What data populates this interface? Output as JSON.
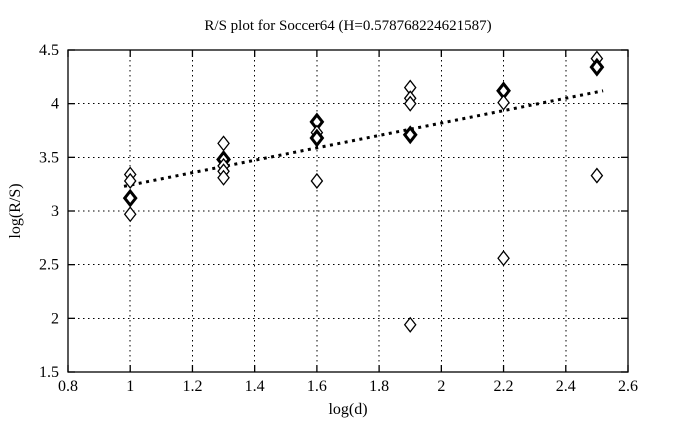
{
  "colors": {
    "background": "#ffffff",
    "foreground": "#000000"
  },
  "chart_data": {
    "type": "scatter",
    "title": "R/S plot for Soccer64 (H=0.578768224621587)",
    "xlabel": "log(d)",
    "ylabel": "log(R/S)",
    "xlim": [
      0.8,
      2.6
    ],
    "ylim": [
      1.5,
      4.5
    ],
    "grid": true,
    "legend_position": "none",
    "marker": "open-diamond",
    "xticks": [
      {
        "v": 0.8,
        "label": "0.8"
      },
      {
        "v": 1.0,
        "label": "1"
      },
      {
        "v": 1.2,
        "label": "1.2"
      },
      {
        "v": 1.4,
        "label": "1.4"
      },
      {
        "v": 1.6,
        "label": "1.6"
      },
      {
        "v": 1.8,
        "label": "1.8"
      },
      {
        "v": 2.0,
        "label": "2"
      },
      {
        "v": 2.2,
        "label": "2.2"
      },
      {
        "v": 2.4,
        "label": "2.4"
      },
      {
        "v": 2.6,
        "label": "2.6"
      }
    ],
    "yticks": [
      {
        "v": 1.5,
        "label": "1.5"
      },
      {
        "v": 2.0,
        "label": "2"
      },
      {
        "v": 2.5,
        "label": "2.5"
      },
      {
        "v": 3.0,
        "label": "3"
      },
      {
        "v": 3.5,
        "label": "3.5"
      },
      {
        "v": 4.0,
        "label": "4"
      },
      {
        "v": 4.5,
        "label": "4.5"
      }
    ],
    "points": [
      {
        "x": 1.0,
        "y": 3.34,
        "bold": false
      },
      {
        "x": 1.0,
        "y": 3.28,
        "bold": false
      },
      {
        "x": 1.0,
        "y": 3.12,
        "bold": true
      },
      {
        "x": 1.0,
        "y": 2.97,
        "bold": false
      },
      {
        "x": 1.3,
        "y": 3.63,
        "bold": false
      },
      {
        "x": 1.3,
        "y": 3.48,
        "bold": true
      },
      {
        "x": 1.3,
        "y": 3.42,
        "bold": false
      },
      {
        "x": 1.3,
        "y": 3.37,
        "bold": false
      },
      {
        "x": 1.3,
        "y": 3.31,
        "bold": false
      },
      {
        "x": 1.6,
        "y": 3.83,
        "bold": true
      },
      {
        "x": 1.6,
        "y": 3.73,
        "bold": false
      },
      {
        "x": 1.6,
        "y": 3.68,
        "bold": true
      },
      {
        "x": 1.6,
        "y": 3.28,
        "bold": false
      },
      {
        "x": 1.9,
        "y": 4.15,
        "bold": false
      },
      {
        "x": 1.9,
        "y": 4.05,
        "bold": false
      },
      {
        "x": 1.9,
        "y": 4.0,
        "bold": false
      },
      {
        "x": 1.9,
        "y": 3.71,
        "bold": true
      },
      {
        "x": 1.9,
        "y": 1.94,
        "bold": false
      },
      {
        "x": 2.2,
        "y": 4.12,
        "bold": true
      },
      {
        "x": 2.2,
        "y": 4.01,
        "bold": false
      },
      {
        "x": 2.2,
        "y": 2.56,
        "bold": false
      },
      {
        "x": 2.5,
        "y": 4.42,
        "bold": false
      },
      {
        "x": 2.5,
        "y": 4.34,
        "bold": true
      },
      {
        "x": 2.5,
        "y": 3.33,
        "bold": false
      }
    ],
    "trend_line": {
      "from": {
        "x": 0.98,
        "y": 3.23
      },
      "to": {
        "x": 2.52,
        "y": 4.12
      },
      "style": "bold-dotted"
    }
  }
}
